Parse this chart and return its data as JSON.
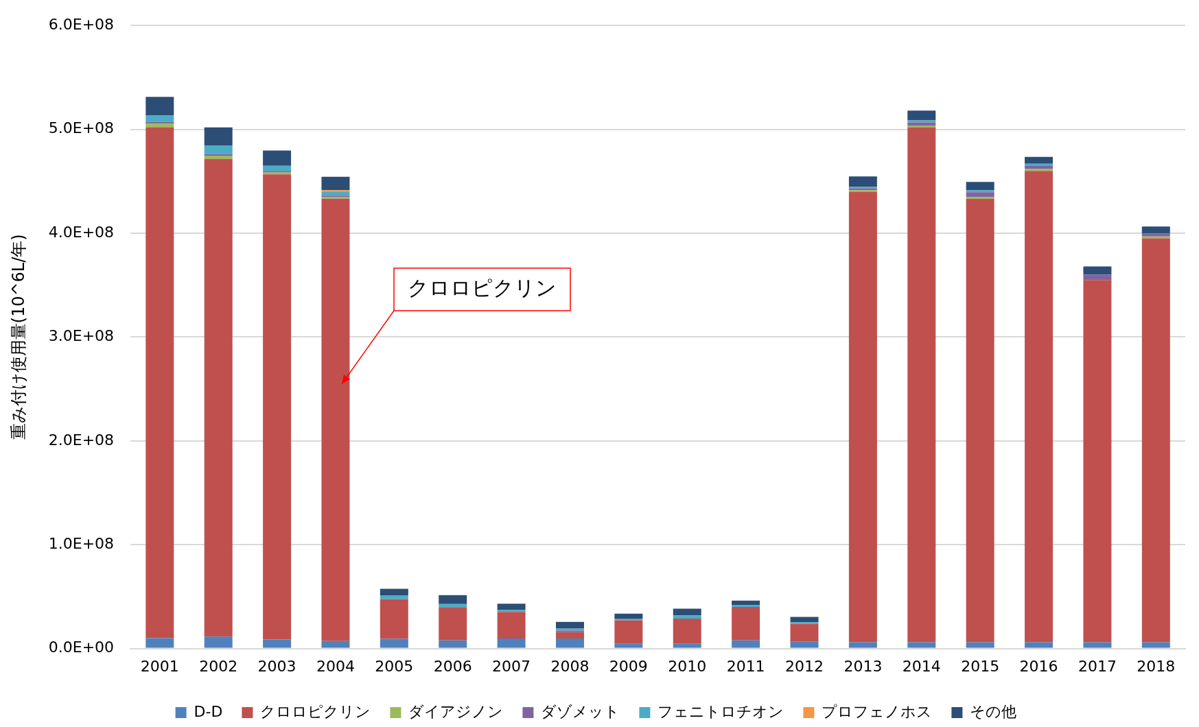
{
  "chart_data": {
    "type": "bar",
    "stacked": true,
    "ylabel": "重み付け使用量(10^6L/年)",
    "categories": [
      "2001",
      "2002",
      "2003",
      "2004",
      "2005",
      "2006",
      "2007",
      "2008",
      "2009",
      "2010",
      "2011",
      "2012",
      "2013",
      "2014",
      "2015",
      "2016",
      "2017",
      "2018"
    ],
    "series": [
      {
        "name": "D-D",
        "color": "#4f81bd",
        "values": [
          10000000.0,
          11500000.0,
          8700000.0,
          7200000.0,
          9300000.0,
          7900000.0,
          9600000.0,
          9600000.0,
          4800000.0,
          4800000.0,
          7900000.0,
          6500000.0,
          6000000.0,
          6000000.0,
          6000000.0,
          6000000.0,
          6000000.0,
          6000000.0
        ]
      },
      {
        "name": "クロロピクリン",
        "color": "#c0504d",
        "values": [
          492000000.0,
          460000000.0,
          448000000.0,
          426000000.0,
          38300000.0,
          31900000.0,
          25700000.0,
          6200000.0,
          22300000.0,
          24000000.0,
          32100000.0,
          17200000.0,
          434000000.0,
          496000000.0,
          427000000.0,
          454000000.0,
          349000000.0,
          389000000.0
        ]
      },
      {
        "name": "ダイアジノン",
        "color": "#9bbb59",
        "values": [
          3500000.0,
          3200000.0,
          1700000.0,
          1500000.0,
          null,
          null,
          null,
          null,
          null,
          null,
          null,
          null,
          1500000.0,
          1700000.0,
          1700000.0,
          1700000.0,
          null,
          1900000.0
        ]
      },
      {
        "name": "ダゾメット",
        "color": "#8064a2",
        "values": [
          1700000.0,
          1500000.0,
          1500000.0,
          1500000.0,
          null,
          null,
          null,
          1400000.0,
          null,
          null,
          null,
          null,
          1700000.0,
          3000000.0,
          4800000.0,
          3500000.0,
          5000000.0,
          3000000.0
        ]
      },
      {
        "name": "フェニトロチオン",
        "color": "#4bacc6",
        "values": [
          6000000.0,
          8000000.0,
          5000000.0,
          3500000.0,
          3400000.0,
          3100000.0,
          1700000.0,
          2000000.0,
          1700000.0,
          3100000.0,
          1700000.0,
          1700000.0,
          1700000.0,
          1900000.0,
          1700000.0,
          1700000.0,
          null,
          null
        ]
      },
      {
        "name": "プロフェノホス",
        "color": "#f79646",
        "values": [
          null,
          null,
          null,
          1700000.0,
          null,
          null,
          null,
          null,
          null,
          null,
          null,
          null,
          null,
          null,
          null,
          null,
          null,
          null
        ]
      },
      {
        "name": "その他",
        "color": "#2c4d75",
        "values": [
          18000000.0,
          17700000.0,
          14700000.0,
          13000000.0,
          6500000.0,
          8500000.0,
          6200000.0,
          6500000.0,
          4800000.0,
          6500000.0,
          4500000.0,
          5100000.0,
          9700000.0,
          9500000.0,
          8200000.0,
          6500000.0,
          8000000.0,
          6500000.0
        ]
      }
    ],
    "ylim": [
      0,
      600000000.0
    ],
    "yticks": [
      {
        "value": 0,
        "label": "0.0E+00"
      },
      {
        "value": 100000000.0,
        "label": "1.0E+08"
      },
      {
        "value": 200000000.0,
        "label": "2.0E+08"
      },
      {
        "value": 300000000.0,
        "label": "3.0E+08"
      },
      {
        "value": 400000000.0,
        "label": "4.0E+08"
      },
      {
        "value": 500000000.0,
        "label": "5.0E+08"
      },
      {
        "value": 600000000.0,
        "label": "6.0E+08"
      }
    ],
    "grid": "y",
    "legend": "bottom",
    "annotations": [
      "クロロピクリン"
    ]
  }
}
